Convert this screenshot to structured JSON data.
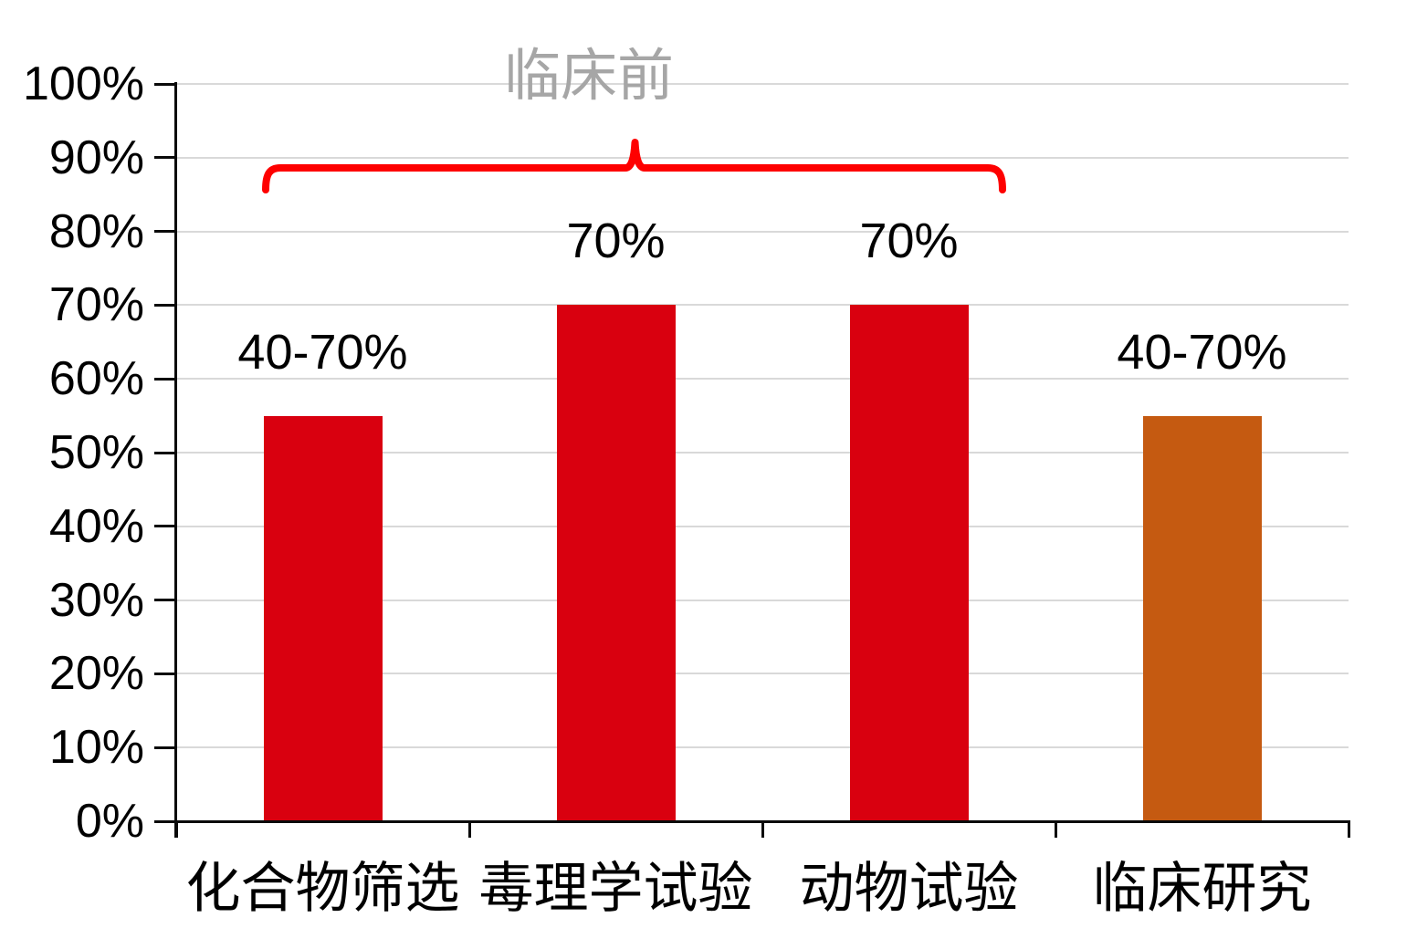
{
  "chart_data": {
    "type": "bar",
    "title": "",
    "xlabel": "",
    "ylabel": "",
    "categories": [
      "化合物筛选",
      "毒理学试验",
      "动物试验",
      "临床研究"
    ],
    "values": [
      55,
      70,
      70,
      55
    ],
    "data_labels": [
      "40-70%",
      "70%",
      "70%",
      "40-70%"
    ],
    "bar_colors": [
      "#d9000f",
      "#d9000f",
      "#d9000f",
      "#c55a11"
    ],
    "ylim": [
      0,
      100
    ],
    "y_ticks": [
      {
        "value": 0,
        "label": "0%"
      },
      {
        "value": 10,
        "label": "10%"
      },
      {
        "value": 20,
        "label": "20%"
      },
      {
        "value": 30,
        "label": "30%"
      },
      {
        "value": 40,
        "label": "40%"
      },
      {
        "value": 50,
        "label": "50%"
      },
      {
        "value": 60,
        "label": "60%"
      },
      {
        "value": 70,
        "label": "70%"
      },
      {
        "value": 80,
        "label": "80%"
      },
      {
        "value": 90,
        "label": "90%"
      },
      {
        "value": 100,
        "label": "100%"
      }
    ],
    "grid": true,
    "grid_color": "#d9d9d9",
    "axis_color": "#0a0a0a",
    "legend": "none",
    "annotation": {
      "label": "临床前",
      "covers_categories": [
        "化合物筛选",
        "毒理学试验",
        "动物试验"
      ],
      "brace_color": "#fe0000",
      "label_color": "#a6a6a6"
    }
  }
}
